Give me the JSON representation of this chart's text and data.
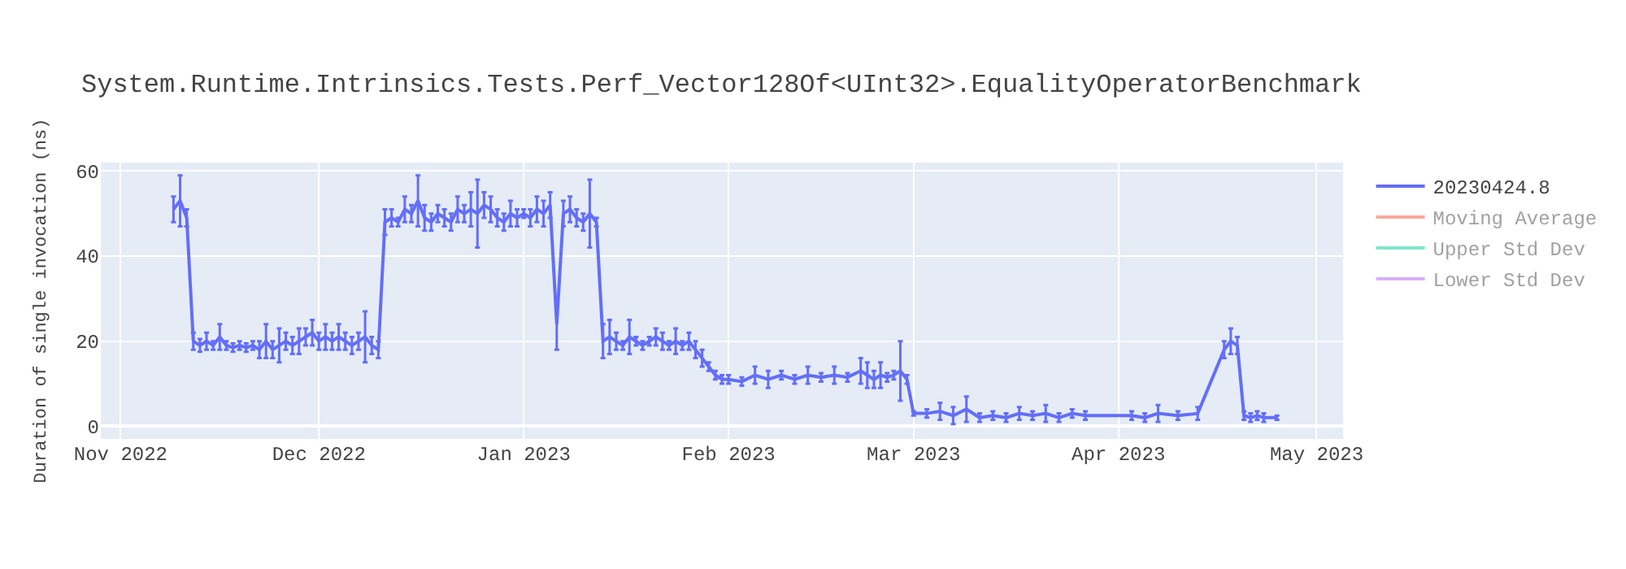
{
  "chart_data": {
    "type": "line",
    "title": "System.Runtime.Intrinsics.Tests.Perf_Vector128Of<UInt32>.EqualityOperatorBenchmark",
    "ylabel": "Duration of single invocation (ns)",
    "x": [
      "2022-11-09",
      "2022-11-10",
      "2022-11-11",
      "2022-11-12",
      "2022-11-13",
      "2022-11-14",
      "2022-11-15",
      "2022-11-16",
      "2022-11-17",
      "2022-11-18",
      "2022-11-19",
      "2022-11-20",
      "2022-11-21",
      "2022-11-22",
      "2022-11-23",
      "2022-11-24",
      "2022-11-25",
      "2022-11-26",
      "2022-11-27",
      "2022-11-28",
      "2022-11-29",
      "2022-11-30",
      "2022-12-01",
      "2022-12-02",
      "2022-12-03",
      "2022-12-04",
      "2022-12-05",
      "2022-12-06",
      "2022-12-07",
      "2022-12-08",
      "2022-12-09",
      "2022-12-10",
      "2022-12-11",
      "2022-12-12",
      "2022-12-13",
      "2022-12-14",
      "2022-12-15",
      "2022-12-16",
      "2022-12-17",
      "2022-12-18",
      "2022-12-19",
      "2022-12-20",
      "2022-12-21",
      "2022-12-22",
      "2022-12-23",
      "2022-12-24",
      "2022-12-25",
      "2022-12-26",
      "2022-12-27",
      "2022-12-28",
      "2022-12-29",
      "2022-12-30",
      "2022-12-31",
      "2023-01-01",
      "2023-01-02",
      "2023-01-03",
      "2023-01-04",
      "2023-01-05",
      "2023-01-06",
      "2023-01-07",
      "2023-01-08",
      "2023-01-09",
      "2023-01-10",
      "2023-01-11",
      "2023-01-12",
      "2023-01-13",
      "2023-01-14",
      "2023-01-15",
      "2023-01-16",
      "2023-01-17",
      "2023-01-18",
      "2023-01-19",
      "2023-01-20",
      "2023-01-21",
      "2023-01-22",
      "2023-01-23",
      "2023-01-24",
      "2023-01-25",
      "2023-01-26",
      "2023-01-27",
      "2023-01-28",
      "2023-01-29",
      "2023-01-30",
      "2023-01-31",
      "2023-02-01",
      "2023-02-03",
      "2023-02-05",
      "2023-02-07",
      "2023-02-09",
      "2023-02-11",
      "2023-02-13",
      "2023-02-15",
      "2023-02-17",
      "2023-02-19",
      "2023-02-21",
      "2023-02-22",
      "2023-02-23",
      "2023-02-24",
      "2023-02-25",
      "2023-02-26",
      "2023-02-27",
      "2023-02-28",
      "2023-03-01",
      "2023-03-03",
      "2023-03-05",
      "2023-03-07",
      "2023-03-09",
      "2023-03-11",
      "2023-03-13",
      "2023-03-15",
      "2023-03-17",
      "2023-03-19",
      "2023-03-21",
      "2023-03-23",
      "2023-03-25",
      "2023-03-27",
      "2023-04-03",
      "2023-04-05",
      "2023-04-07",
      "2023-04-10",
      "2023-04-13",
      "2023-04-17",
      "2023-04-18",
      "2023-04-19",
      "2023-04-20",
      "2023-04-21",
      "2023-04-22",
      "2023-04-23",
      "2023-04-25"
    ],
    "series": [
      {
        "name": "20230424.8",
        "color": "#636efa",
        "values": [
          51,
          53,
          49,
          20,
          19,
          20,
          19,
          21,
          19,
          18.5,
          19,
          18.5,
          19,
          18,
          20,
          18,
          19,
          20,
          19,
          20,
          21,
          22,
          20,
          21,
          20,
          21,
          20,
          19,
          20,
          21,
          19,
          18,
          48,
          49,
          48,
          51,
          50,
          53,
          49,
          48,
          50,
          49,
          48,
          51,
          50,
          51,
          50,
          52,
          51,
          49,
          48,
          50,
          49,
          50,
          49,
          51,
          50,
          52,
          24,
          50,
          51,
          49,
          48,
          50,
          48,
          20,
          21,
          20,
          19,
          21,
          20,
          19,
          20,
          21,
          20,
          19,
          20,
          19,
          20,
          18,
          16,
          14,
          12,
          11,
          11,
          10.5,
          12,
          11,
          12,
          11,
          12,
          11.5,
          12,
          11.5,
          13,
          12,
          11,
          12,
          11.5,
          12,
          13,
          11,
          3,
          3,
          3.5,
          2.5,
          4,
          2,
          2.5,
          2,
          3,
          2.5,
          3,
          2,
          3,
          2.5,
          2.5,
          2,
          3,
          2.5,
          3,
          18,
          20,
          19,
          2.5,
          2,
          2.5,
          2,
          2
        ],
        "errors": [
          3,
          6,
          2,
          2,
          1.5,
          2,
          1,
          3,
          1,
          1,
          1,
          1,
          1,
          2,
          4,
          2,
          4,
          2,
          2,
          3,
          2,
          3,
          2,
          3,
          2,
          3,
          2,
          2,
          2,
          6,
          2,
          2,
          3,
          2,
          1,
          3,
          2,
          6,
          3,
          2,
          2,
          2,
          2,
          3,
          2,
          4,
          8,
          3,
          3,
          2,
          2,
          3,
          2,
          1,
          2,
          3,
          3,
          3,
          6,
          3,
          3,
          2,
          2,
          8,
          1,
          4,
          4,
          2,
          1,
          4,
          1,
          1,
          1,
          2,
          2,
          1,
          3,
          1,
          2,
          2,
          2,
          1,
          1,
          1,
          1,
          1,
          2,
          2,
          1,
          1,
          2,
          1,
          2,
          1,
          3,
          3,
          2,
          3,
          1,
          1,
          7,
          1,
          0.5,
          1,
          2,
          2,
          3,
          1,
          1,
          1,
          1.5,
          1,
          2,
          1,
          1,
          1,
          1,
          1,
          2,
          1,
          1.5,
          2,
          3,
          2,
          1,
          1,
          1,
          1,
          0.5
        ]
      },
      {
        "name": "Moving Average",
        "color": "#ef553b",
        "values": [
          null,
          null,
          null,
          null,
          null,
          null,
          null,
          null,
          null,
          null,
          null,
          null,
          null,
          null,
          null,
          null,
          null,
          null,
          null,
          null,
          null,
          null,
          null,
          null,
          null,
          null,
          null,
          null,
          null,
          null,
          null,
          null,
          null,
          null,
          null,
          null,
          null,
          null,
          null,
          null,
          null,
          null,
          null,
          null,
          null,
          null,
          null,
          null,
          null,
          null,
          null,
          null,
          null,
          null,
          null,
          null,
          null,
          null,
          null,
          null,
          null,
          null,
          null,
          null,
          null,
          null,
          null,
          null,
          null,
          null,
          null,
          null,
          null,
          null,
          null,
          null,
          null,
          null,
          null,
          null,
          null,
          null,
          null,
          null,
          null,
          null,
          null,
          null,
          null,
          null,
          null,
          null,
          null,
          null,
          null,
          null,
          null,
          null,
          null,
          null,
          null,
          null,
          null,
          null,
          null,
          null,
          null,
          null,
          null,
          null,
          null,
          null,
          null,
          null,
          null,
          null,
          null,
          null,
          null,
          null,
          null,
          null,
          null,
          null,
          null,
          null,
          null,
          null,
          null
        ]
      },
      {
        "name": "Upper Std Dev",
        "color": "#00cc96",
        "values": [
          null,
          null,
          null,
          null,
          null,
          null,
          null,
          null,
          null,
          null,
          null,
          null,
          null,
          null,
          null,
          null,
          null,
          null,
          null,
          null,
          null,
          null,
          null,
          null,
          null,
          null,
          null,
          null,
          null,
          null,
          null,
          null,
          null,
          null,
          null,
          null,
          null,
          null,
          null,
          null,
          null,
          null,
          null,
          null,
          null,
          null,
          null,
          null,
          null,
          null,
          null,
          null,
          null,
          null,
          null,
          null,
          null,
          null,
          null,
          null,
          null,
          null,
          null,
          null,
          null,
          null,
          null,
          null,
          null,
          null,
          null,
          null,
          null,
          null,
          null,
          null,
          null,
          null,
          null,
          null,
          null,
          null,
          null,
          null,
          null,
          null,
          null,
          null,
          null,
          null,
          null,
          null,
          null,
          null,
          null,
          null,
          null,
          null,
          null,
          null,
          null,
          null,
          null,
          null,
          null,
          null,
          null,
          null,
          null,
          null,
          null,
          null,
          null,
          null,
          null,
          null,
          null,
          null,
          null,
          null,
          null,
          null,
          null,
          null,
          null,
          null,
          null,
          null,
          null
        ]
      },
      {
        "name": "Lower Std Dev",
        "color": "#ab63fa",
        "values": [
          null,
          null,
          null,
          null,
          null,
          null,
          null,
          null,
          null,
          null,
          null,
          null,
          null,
          null,
          null,
          null,
          null,
          null,
          null,
          null,
          null,
          null,
          null,
          null,
          null,
          null,
          null,
          null,
          null,
          null,
          null,
          null,
          null,
          null,
          null,
          null,
          null,
          null,
          null,
          null,
          null,
          null,
          null,
          null,
          null,
          null,
          null,
          null,
          null,
          null,
          null,
          null,
          null,
          null,
          null,
          null,
          null,
          null,
          null,
          null,
          null,
          null,
          null,
          null,
          null,
          null,
          null,
          null,
          null,
          null,
          null,
          null,
          null,
          null,
          null,
          null,
          null,
          null,
          null,
          null,
          null,
          null,
          null,
          null,
          null,
          null,
          null,
          null,
          null,
          null,
          null,
          null,
          null,
          null,
          null,
          null,
          null,
          null,
          null,
          null,
          null,
          null,
          null,
          null,
          null,
          null,
          null,
          null,
          null,
          null,
          null,
          null,
          null,
          null,
          null,
          null,
          null,
          null,
          null,
          null,
          null,
          null,
          null,
          null,
          null,
          null,
          null,
          null,
          null
        ]
      }
    ],
    "xlim": [
      "2022-10-29",
      "2023-05-05"
    ],
    "xticks": [
      {
        "value": "2022-11-01",
        "label": "Nov 2022"
      },
      {
        "value": "2022-12-01",
        "label": "Dec 2022"
      },
      {
        "value": "2023-01-01",
        "label": "Jan 2023"
      },
      {
        "value": "2023-02-01",
        "label": "Feb 2023"
      },
      {
        "value": "2023-03-01",
        "label": "Mar 2023"
      },
      {
        "value": "2023-04-01",
        "label": "Apr 2023"
      },
      {
        "value": "2023-05-01",
        "label": "May 2023"
      }
    ],
    "ylim": [
      -3,
      62
    ],
    "yticks": [
      0,
      20,
      40,
      60
    ],
    "grid": true,
    "legend": "right",
    "marker": "none",
    "line_style": "solid"
  }
}
